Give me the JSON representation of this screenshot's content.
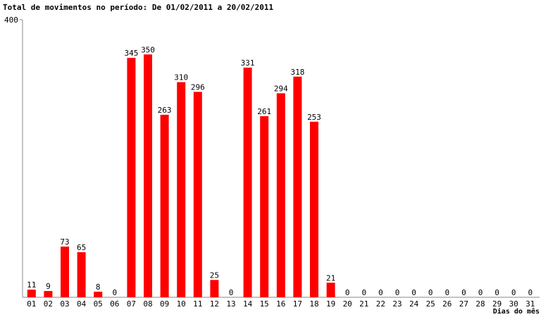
{
  "chart_data": {
    "type": "bar",
    "title": "Total de movimentos no período: De 01/02/2011 a 20/02/2011",
    "xlabel": "Dias do mês",
    "ylabel": "",
    "ylim": [
      0,
      400
    ],
    "y_tick_labels": [
      "400"
    ],
    "grid": false,
    "bar_color": "#ff0000",
    "categories": [
      "01",
      "02",
      "03",
      "04",
      "05",
      "06",
      "07",
      "08",
      "09",
      "10",
      "11",
      "12",
      "13",
      "14",
      "15",
      "16",
      "17",
      "18",
      "19",
      "20",
      "21",
      "22",
      "23",
      "24",
      "25",
      "26",
      "27",
      "28",
      "29",
      "30",
      "31"
    ],
    "values": [
      11,
      9,
      73,
      65,
      8,
      0,
      345,
      350,
      263,
      310,
      296,
      25,
      0,
      331,
      261,
      294,
      318,
      253,
      21,
      0,
      0,
      0,
      0,
      0,
      0,
      0,
      0,
      0,
      0,
      0,
      0
    ]
  }
}
